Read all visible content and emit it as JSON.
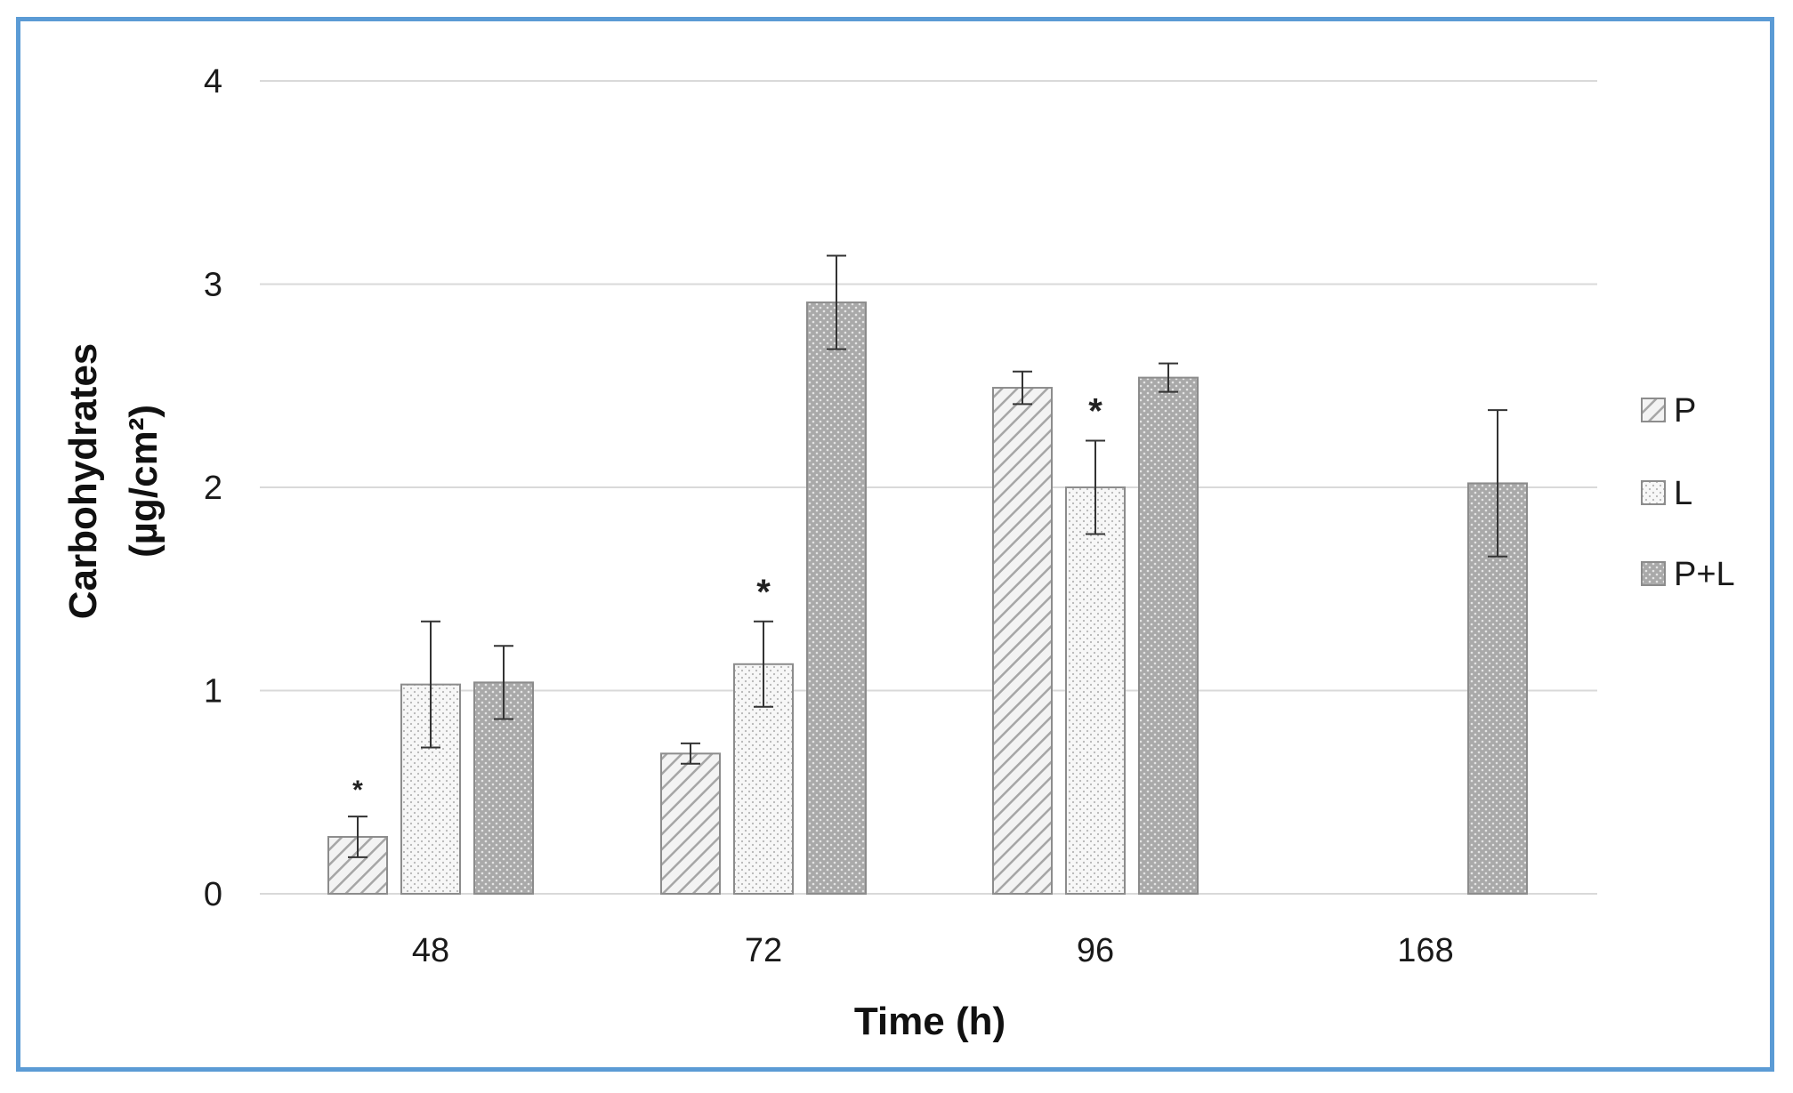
{
  "chart_data": {
    "type": "bar",
    "xlabel": "Time (h)",
    "ylabel_line1": "Carbohydrates",
    "ylabel_line2": "(µg/cm²)",
    "categories": [
      "48",
      "72",
      "96",
      "168"
    ],
    "ylim": [
      0,
      4
    ],
    "yticks": [
      "0",
      "1",
      "2",
      "3",
      "4"
    ],
    "grid": true,
    "legend_position": "right",
    "series": [
      {
        "name": "P",
        "pattern": "diagonal-hatch",
        "values": [
          0.28,
          0.69,
          2.49,
          null
        ],
        "errors": [
          0.1,
          0.05,
          0.08,
          null
        ]
      },
      {
        "name": "L",
        "pattern": "light-dots",
        "values": [
          1.03,
          1.13,
          2.0,
          null
        ],
        "errors": [
          0.31,
          0.21,
          0.23,
          null
        ]
      },
      {
        "name": "P+L",
        "pattern": "dark-dots",
        "values": [
          1.04,
          2.91,
          2.54,
          2.02
        ],
        "errors": [
          0.18,
          0.23,
          0.07,
          0.36
        ]
      }
    ],
    "annotations": [
      {
        "category": "48",
        "series": "P",
        "text": "*"
      },
      {
        "category": "72",
        "series": "L",
        "text": "*"
      },
      {
        "category": "96",
        "series": "L",
        "text": "*"
      }
    ],
    "colors": {
      "frame": "#5b9bd5",
      "grid": "#d9d9d9",
      "bar_edge": "#8c8c8c",
      "error_bar": "#333333"
    }
  }
}
